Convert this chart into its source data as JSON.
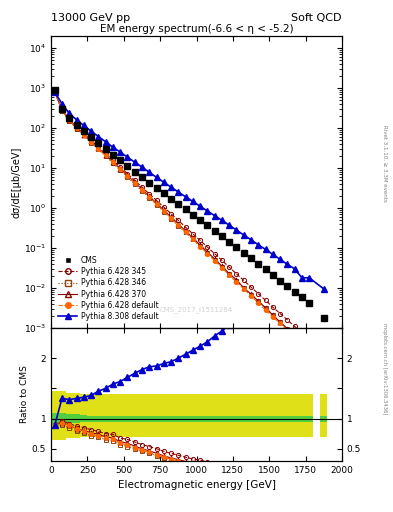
{
  "title_left": "13000 GeV pp",
  "title_right": "Soft QCD",
  "main_title": "EM energy spectrum(-6.6 < η < -5.2)",
  "xlabel": "Electromagnetic energy [GeV]",
  "ylabel_main": "dσ/dE[μb/GeV]",
  "ylabel_ratio": "Ratio to CMS",
  "right_label": "Rivet 3.1.10, ≥ 3.3M events",
  "watermark": "mcplots.cern.ch [arXiv:1306.3436]",
  "cms_watermark": "CMS_2017_I1511284",
  "energy_x": [
    25,
    75,
    125,
    175,
    225,
    275,
    325,
    375,
    425,
    475,
    525,
    575,
    625,
    675,
    725,
    775,
    825,
    875,
    925,
    975,
    1025,
    1075,
    1125,
    1175,
    1225,
    1275,
    1325,
    1375,
    1425,
    1475,
    1525,
    1575,
    1625,
    1675,
    1725,
    1775,
    1875
  ],
  "cms_y": [
    900,
    300,
    175,
    120,
    85,
    60,
    42,
    30,
    21,
    15.5,
    11,
    8,
    5.8,
    4.2,
    3.1,
    2.3,
    1.7,
    1.25,
    0.92,
    0.68,
    0.5,
    0.37,
    0.27,
    0.2,
    0.145,
    0.105,
    0.076,
    0.055,
    0.04,
    0.029,
    0.021,
    0.015,
    0.011,
    0.008,
    0.0058,
    0.0042,
    0.0018
  ],
  "p6_345_y": [
    800,
    290,
    160,
    105,
    72,
    49,
    33,
    22.5,
    15.5,
    10.5,
    7.2,
    4.9,
    3.3,
    2.25,
    1.55,
    1.05,
    0.72,
    0.49,
    0.33,
    0.225,
    0.155,
    0.105,
    0.072,
    0.049,
    0.033,
    0.0225,
    0.0155,
    0.0105,
    0.0072,
    0.0049,
    0.0033,
    0.0023,
    0.0016,
    0.0011,
    0.00075,
    0.00052,
    0.00022
  ],
  "p6_346_y": [
    800,
    270,
    148,
    96,
    65,
    43,
    29,
    19.5,
    13.2,
    8.8,
    5.9,
    3.95,
    2.65,
    1.78,
    1.2,
    0.8,
    0.54,
    0.36,
    0.245,
    0.165,
    0.11,
    0.074,
    0.05,
    0.033,
    0.022,
    0.0148,
    0.01,
    0.0068,
    0.0046,
    0.0031,
    0.0021,
    0.0014,
    0.00096,
    0.00064,
    0.00044,
    0.0003,
    0.00012
  ],
  "p6_370_y": [
    820,
    280,
    155,
    100,
    68,
    46,
    31,
    21,
    14.2,
    9.6,
    6.5,
    4.35,
    2.9,
    1.95,
    1.32,
    0.88,
    0.59,
    0.4,
    0.265,
    0.178,
    0.118,
    0.079,
    0.053,
    0.035,
    0.023,
    0.016,
    0.01,
    0.007,
    0.0047,
    0.0032,
    0.0021,
    0.0014,
    0.00097,
    0.00065,
    0.00043,
    0.00029,
    0.00011
  ],
  "p6_def_y": [
    800,
    280,
    155,
    100,
    68,
    45,
    30,
    20.5,
    13.8,
    9.2,
    6.2,
    4.15,
    2.78,
    1.85,
    1.25,
    0.83,
    0.55,
    0.37,
    0.247,
    0.165,
    0.108,
    0.072,
    0.048,
    0.032,
    0.021,
    0.014,
    0.0095,
    0.0063,
    0.0042,
    0.0028,
    0.0019,
    0.0013,
    0.00087,
    0.00058,
    0.00039,
    0.00026,
    0.0001
  ],
  "p8_def_y": [
    800,
    400,
    230,
    160,
    115,
    83,
    61,
    45,
    33,
    25,
    18.5,
    14,
    10.5,
    7.8,
    5.8,
    4.4,
    3.3,
    2.5,
    1.9,
    1.45,
    1.1,
    0.84,
    0.64,
    0.49,
    0.37,
    0.28,
    0.21,
    0.16,
    0.12,
    0.092,
    0.069,
    0.052,
    0.039,
    0.03,
    0.018,
    0.018,
    0.0095
  ],
  "cms_err_lo": [
    0.9,
    0.9,
    0.93,
    0.93,
    0.94,
    0.95,
    0.95,
    0.95,
    0.95,
    0.95,
    0.95,
    0.95,
    0.95,
    0.95,
    0.95,
    0.95,
    0.95,
    0.95,
    0.95,
    0.95,
    0.95,
    0.95,
    0.95,
    0.95,
    0.95,
    0.95,
    0.95,
    0.95,
    0.95,
    0.95,
    0.95,
    0.95,
    0.95,
    0.95,
    0.95,
    0.95,
    0.95
  ],
  "cms_err_hi": [
    1.1,
    1.1,
    1.07,
    1.07,
    1.06,
    1.05,
    1.05,
    1.05,
    1.05,
    1.05,
    1.05,
    1.05,
    1.05,
    1.05,
    1.05,
    1.05,
    1.05,
    1.05,
    1.05,
    1.05,
    1.05,
    1.05,
    1.05,
    1.05,
    1.05,
    1.05,
    1.05,
    1.05,
    1.05,
    1.05,
    1.05,
    1.05,
    1.05,
    1.05,
    1.05,
    1.05,
    1.05
  ],
  "color_cms": "#000000",
  "color_p6_345": "#8B0000",
  "color_p6_346": "#8B4513",
  "color_p6_370": "#8B0000",
  "color_p6_def": "#FF6600",
  "color_p8_def": "#0000CC",
  "color_green_band": "#44CC44",
  "color_yellow_band": "#DDDD00",
  "xlim": [
    0,
    2000
  ],
  "ylim_main": [
    0.001,
    20000.0
  ],
  "ylim_ratio": [
    0.3,
    2.5
  ]
}
